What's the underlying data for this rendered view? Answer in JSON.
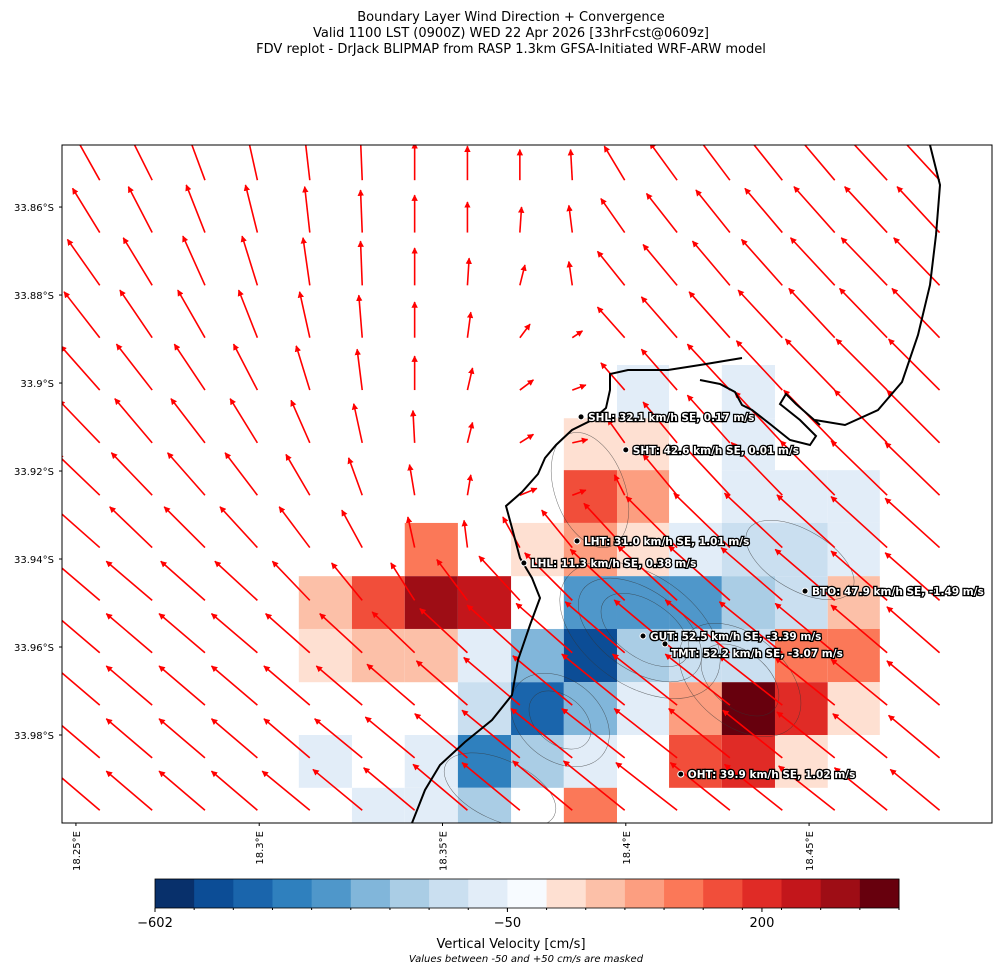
{
  "chart_data": {
    "type": "quiver",
    "title": [
      "Boundary Layer Wind Direction + Convergence",
      "Valid 1100 LST (0900Z) WED 22 Apr 2026 [33hrFcst@0609z]",
      "FDV replot - DrJack BLIPMAP from RASP 1.3km GFSA-Initiated WRF-ARW model"
    ],
    "xlim": [
      18.2462,
      18.4999
    ],
    "ylim": [
      -34.0,
      -33.8459
    ],
    "xticks": [
      {
        "value": 18.25,
        "label": "18.25°E"
      },
      {
        "value": 18.3,
        "label": "18.3°E"
      },
      {
        "value": 18.35,
        "label": "18.35°E"
      },
      {
        "value": 18.4,
        "label": "18.4°E"
      },
      {
        "value": 18.45,
        "label": "18.45°E"
      }
    ],
    "yticks": [
      {
        "value": -33.86,
        "label": "33.86°S"
      },
      {
        "value": -33.88,
        "label": "33.88°S"
      },
      {
        "value": -33.9,
        "label": "33.9°S"
      },
      {
        "value": -33.92,
        "label": "33.92°S"
      },
      {
        "value": -33.94,
        "label": "33.94°S"
      },
      {
        "value": -33.96,
        "label": "33.96°S"
      },
      {
        "value": -33.98,
        "label": "33.98°S"
      }
    ],
    "arrow_color": "#ff0000",
    "velocity": {
      "lon_edges": [
        18.3108,
        18.3253,
        18.3397,
        18.3542,
        18.3687,
        18.3831,
        18.3976,
        18.4118,
        18.4262,
        18.4407,
        18.4551,
        18.4693
      ],
      "lat_edges": [
        -33.8959,
        -33.908,
        -33.9198,
        -33.9318,
        -33.9439,
        -33.9559,
        -33.968,
        -33.98,
        -33.992,
        -34.0041
      ],
      "values": [
        [
          null,
          null,
          null,
          null,
          null,
          null,
          -80,
          null,
          -80,
          null,
          null
        ],
        [
          null,
          null,
          null,
          null,
          null,
          65,
          65,
          null,
          -80,
          null,
          null
        ],
        [
          null,
          null,
          null,
          null,
          null,
          175,
          120,
          null,
          -80,
          -80,
          -80
        ],
        [
          null,
          null,
          150,
          null,
          65,
          120,
          65,
          -80,
          -150,
          -150,
          -80
        ],
        [
          95,
          175,
          260,
          230,
          null,
          -330,
          -330,
          -330,
          -210,
          -150,
          95
        ],
        [
          65,
          95,
          95,
          -80,
          -270,
          -510,
          -210,
          -150,
          -150,
          150,
          150
        ],
        [
          null,
          null,
          null,
          -150,
          -450,
          -270,
          -80,
          120,
          300,
          200,
          65
        ],
        [
          -80,
          null,
          -80,
          -390,
          -210,
          -80,
          null,
          175,
          200,
          65,
          null
        ],
        [
          null,
          -80,
          -80,
          -210,
          null,
          150,
          null,
          null,
          null,
          null,
          null
        ]
      ]
    },
    "wind": {
      "lon": [
        18.2565,
        18.2708,
        18.2852,
        18.2995,
        18.3138,
        18.3281,
        18.3424,
        18.3568,
        18.3711,
        18.3854,
        18.3997,
        18.414,
        18.4284,
        18.4427,
        18.457,
        18.4713,
        18.4856
      ],
      "lat": [
        -33.8539,
        -33.8658,
        -33.8778,
        -33.8897,
        -33.9016,
        -33.9136,
        -33.9255,
        -33.9374,
        -33.9494,
        -33.9613,
        -33.9732,
        -33.9852,
        -33.9971
      ],
      "u": [
        [
          -14,
          -13,
          -10,
          -6,
          -3,
          -1,
          0,
          0,
          0,
          -1,
          -12,
          -16,
          -18,
          -20,
          -22,
          -24,
          -24
        ],
        [
          -16,
          -14,
          -11,
          -7,
          -3,
          -1,
          0,
          0,
          1,
          -2,
          -14,
          -18,
          -20,
          -22,
          -24,
          -25,
          -25
        ],
        [
          -19,
          -17,
          -13,
          -9,
          -4,
          -1,
          0,
          1,
          3,
          -2,
          -16,
          -20,
          -22,
          -24,
          -26,
          -27,
          -27
        ],
        [
          -21,
          -19,
          -16,
          -11,
          -6,
          -2,
          0,
          2,
          6,
          6,
          -16,
          -21,
          -24,
          -26,
          -27,
          -28,
          -28
        ],
        [
          -23,
          -21,
          -18,
          -14,
          -8,
          -3,
          0,
          3,
          8,
          8,
          -14,
          -21,
          -25,
          -27,
          -29,
          -30,
          -30
        ],
        [
          -24,
          -22,
          -20,
          -16,
          -11,
          -5,
          -1,
          3,
          8,
          9,
          -10,
          -20,
          -25,
          -28,
          -30,
          -31,
          -31
        ],
        [
          -25,
          -24,
          -22,
          -19,
          -14,
          -8,
          -3,
          2,
          10,
          8,
          -6,
          -20,
          -27,
          -30,
          -32,
          -33,
          -32
        ],
        [
          -26,
          -25,
          -24,
          -22,
          -18,
          -12,
          -4,
          -2,
          -10,
          -18,
          -24,
          -30,
          -33,
          -34,
          -34,
          -33,
          -32
        ],
        [
          -27,
          -27,
          -26,
          -25,
          -22,
          -18,
          -14,
          -18,
          -24,
          -28,
          -32,
          -35,
          -36,
          -36,
          -35,
          -33,
          -32
        ],
        [
          -27,
          -27,
          -27,
          -27,
          -26,
          -25,
          -25,
          -28,
          -31,
          -33,
          -35,
          -37,
          -38,
          -37,
          -35,
          -33,
          -31
        ],
        [
          -27,
          -27,
          -27,
          -27,
          -27,
          -27,
          -28,
          -30,
          -33,
          -35,
          -37,
          -38,
          -38,
          -37,
          -35,
          -33,
          -31
        ],
        [
          -27,
          -27,
          -27,
          -27,
          -27,
          -28,
          -29,
          -31,
          -34,
          -36,
          -37,
          -37,
          -36,
          -35,
          -34,
          -32,
          -30
        ],
        [
          -27,
          -27,
          -27,
          -27,
          -28,
          -29,
          -30,
          -32,
          -34,
          -35,
          -36,
          -36,
          -35,
          -34,
          -33,
          -31,
          -29
        ]
      ],
      "v": [
        [
          25,
          26,
          27,
          27,
          26,
          24,
          22,
          20,
          18,
          18,
          20,
          22,
          24,
          25,
          26,
          26,
          26
        ],
        [
          26,
          27,
          28,
          28,
          27,
          25,
          22,
          18,
          15,
          16,
          20,
          23,
          25,
          26,
          27,
          27,
          27
        ],
        [
          27,
          28,
          29,
          29,
          28,
          26,
          22,
          16,
          12,
          14,
          20,
          24,
          26,
          27,
          28,
          28,
          28
        ],
        [
          27,
          28,
          28,
          28,
          27,
          25,
          21,
          15,
          8,
          4,
          18,
          24,
          27,
          28,
          29,
          29,
          29
        ],
        [
          26,
          27,
          27,
          27,
          26,
          24,
          20,
          13,
          6,
          3,
          16,
          24,
          27,
          29,
          30,
          30,
          30
        ],
        [
          25,
          26,
          26,
          26,
          25,
          23,
          19,
          12,
          5,
          2,
          14,
          24,
          28,
          30,
          31,
          31,
          31
        ],
        [
          24,
          25,
          25,
          25,
          24,
          22,
          18,
          12,
          4,
          3,
          12,
          24,
          29,
          31,
          32,
          32,
          31
        ],
        [
          23,
          24,
          24,
          24,
          24,
          22,
          18,
          16,
          18,
          22,
          26,
          30,
          32,
          32,
          31,
          30,
          29
        ],
        [
          23,
          23,
          23,
          23,
          23,
          22,
          22,
          24,
          26,
          28,
          30,
          32,
          32,
          31,
          30,
          29,
          28
        ],
        [
          23,
          23,
          23,
          23,
          23,
          23,
          24,
          26,
          28,
          29,
          30,
          31,
          31,
          30,
          29,
          28,
          27
        ],
        [
          23,
          23,
          23,
          23,
          23,
          23,
          24,
          26,
          28,
          29,
          30,
          30,
          30,
          29,
          28,
          27,
          26
        ],
        [
          23,
          23,
          23,
          23,
          23,
          23,
          24,
          26,
          28,
          29,
          29,
          29,
          29,
          28,
          27,
          26,
          25
        ],
        [
          23,
          23,
          23,
          23,
          23,
          24,
          25,
          27,
          28,
          29,
          29,
          28,
          28,
          27,
          26,
          25,
          24
        ]
      ]
    },
    "stations": [
      {
        "label": "SHL: 32.1 km/h SE, 0.17 m/s",
        "lon": 18.3878,
        "lat": -33.9077
      },
      {
        "label": "SHT: 42.6 km/h SE, 0.01 m/s",
        "lon": 18.4,
        "lat": -33.9152
      },
      {
        "label": "LHT: 31.0 km/h SE, 1.01 m/s",
        "lon": 18.3867,
        "lat": -33.9359
      },
      {
        "label": "LHL: 11.3 km/h SE, 0.38 m/s",
        "lon": 18.3722,
        "lat": -33.9409
      },
      {
        "label": "BTO: 47.9 km/h SE, -1.49 m/s",
        "lon": 18.4489,
        "lat": -33.9473
      },
      {
        "label": "GUT: 52.5 km/h SE, -3.39 m/s",
        "lon": 18.4047,
        "lat": -33.9575
      },
      {
        "label": "TMT: 52.2 km/h SE, -3.07 m/s",
        "lon": 18.4107,
        "lat": -33.9593
      },
      {
        "label": "OHT: 39.9 km/h SE, 1.02 m/s",
        "lon": 18.415,
        "lat": -33.9889
      }
    ],
    "colorbar": {
      "label": "Vertical Velocity [cm/s]",
      "note": "Values between -50 and +50 cm/s are masked",
      "levels": [
        -602,
        -540,
        -480,
        -420,
        -360,
        -300,
        -240,
        -180,
        -115,
        -50,
        50,
        80,
        110,
        140,
        170,
        185,
        215,
        245,
        275,
        305
      ],
      "colors": [
        "#08306b",
        "#0c4d96",
        "#1a65ac",
        "#2f80be",
        "#4f97ca",
        "#81b6da",
        "#aacde5",
        "#cadff0",
        "#e2edf8",
        "#f7fbff",
        "#fee0d2",
        "#fcc0a8",
        "#fc9e80",
        "#fb7858",
        "#f14e3a",
        "#e02b26",
        "#c3161b",
        "#9e0d15",
        "#67000d"
      ],
      "ticks": [
        {
          "value": -602,
          "label": "−602"
        },
        {
          "value": -50,
          "label": "−50"
        },
        {
          "value": 200,
          "label": "200"
        }
      ]
    }
  }
}
